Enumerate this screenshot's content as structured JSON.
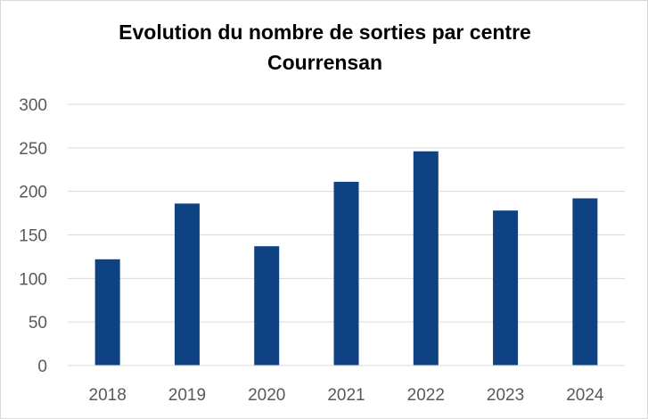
{
  "chart_data": {
    "type": "bar",
    "title_lines": [
      "Evolution du nombre de sorties par centre",
      "Courrensan"
    ],
    "categories": [
      "2018",
      "2019",
      "2020",
      "2021",
      "2022",
      "2023",
      "2024"
    ],
    "values": [
      122,
      186,
      137,
      211,
      246,
      178,
      192
    ],
    "ylim": [
      0,
      300
    ],
    "yticks": [
      0,
      50,
      100,
      150,
      200,
      250,
      300
    ],
    "xlabel": "",
    "ylabel": "",
    "grid": true,
    "legend": "none",
    "bar_color": "#0f4282",
    "grid_color": "#d9d9d9"
  }
}
